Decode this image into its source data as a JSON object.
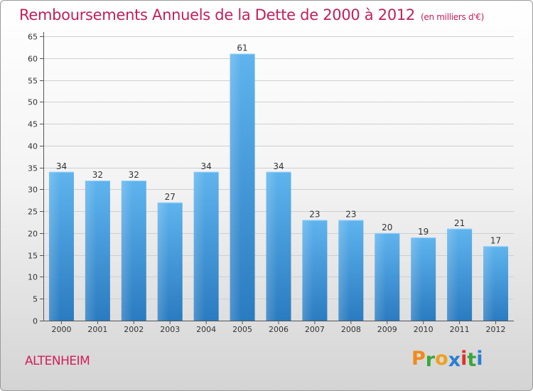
{
  "chart_data": {
    "type": "bar",
    "title": "Remboursements Annuels de la Dette de 2000 à 2012",
    "unit_label": "(en milliers d'€)",
    "categories": [
      "2000",
      "2001",
      "2002",
      "2003",
      "2004",
      "2005",
      "2006",
      "2007",
      "2008",
      "2009",
      "2010",
      "2011",
      "2012"
    ],
    "values": [
      34,
      32,
      32,
      27,
      34,
      61,
      34,
      23,
      23,
      20,
      19,
      21,
      17
    ],
    "ylim": [
      0,
      65
    ],
    "yticks": [
      0,
      5,
      10,
      15,
      20,
      25,
      30,
      35,
      40,
      45,
      50,
      55,
      60,
      65
    ],
    "xlabel": "",
    "ylabel": "",
    "grid": true,
    "bar_color": "#4a9ede"
  },
  "footer": {
    "city": "ALTENHEIM",
    "logo_letters": [
      "P",
      "r",
      "o",
      "x",
      "i",
      "t",
      "i"
    ],
    "logo_colors": [
      "#f08a1c",
      "#3aa63a",
      "#f0a020",
      "#2a7fd4",
      "#e0302a",
      "#3aa63a",
      "#2a7fd4"
    ]
  }
}
